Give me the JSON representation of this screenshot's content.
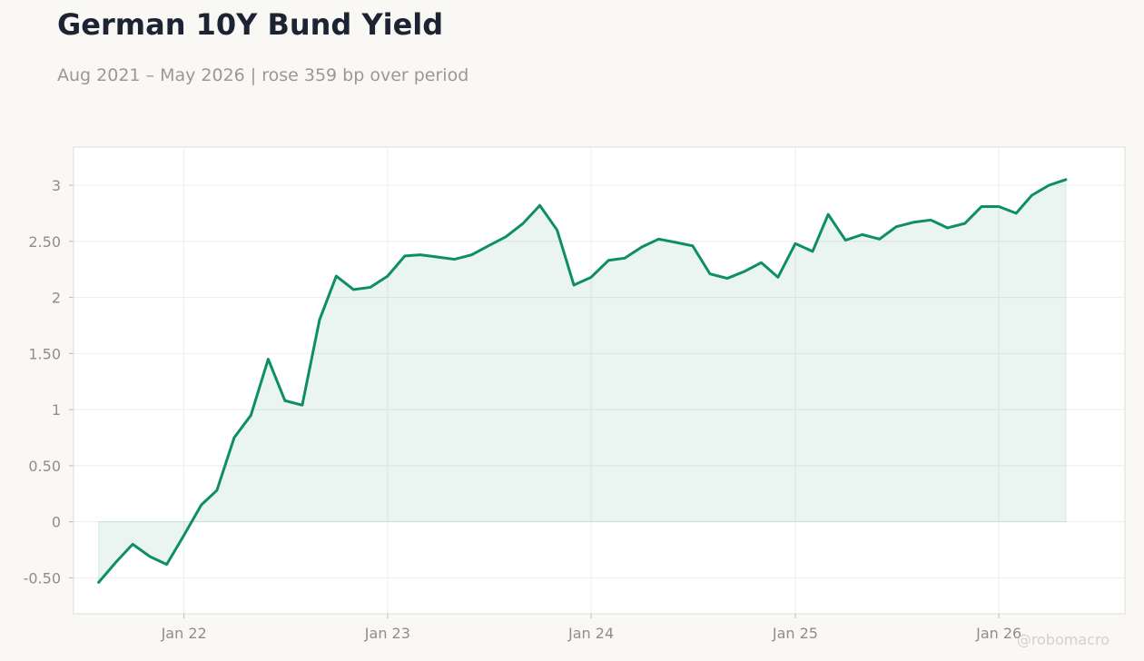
{
  "title": "German 10Y Bund Yield",
  "subtitle": "Aug 2021 – May 2026 | rose 359 bp over period",
  "watermark": "@robomacro",
  "colors": {
    "line": "#0e8f5f",
    "fill": "#0e8f5f",
    "background": "#f9f8f5",
    "plot_background": "#ffffff"
  },
  "chart_data": {
    "type": "area",
    "title": "German 10Y Bund Yield",
    "subtitle": "Aug 2021 – May 2026 | rose 359 bp over period",
    "xlabel": "",
    "ylabel": "",
    "ylim": [
      -0.82,
      3.34
    ],
    "xlim": [
      "2021-06-17",
      "2026-08-15"
    ],
    "grid": true,
    "legend": "none",
    "yticks": [
      -0.5,
      0,
      0.5,
      1,
      1.5,
      2,
      2.5,
      3
    ],
    "ytick_labels": [
      "-0.50",
      "0",
      "0.50",
      "1",
      "1.50",
      "2",
      "2.50",
      "3"
    ],
    "xticks": [
      "2022-01-01",
      "2023-01-01",
      "2024-01-01",
      "2025-01-01",
      "2026-01-01"
    ],
    "xtick_labels": [
      "Jan 22",
      "Jan 23",
      "Jan 24",
      "Jan 25",
      "Jan 26"
    ],
    "series": [
      {
        "x": [
          "2021-08-01",
          "2021-09-01",
          "2021-10-01",
          "2021-11-01",
          "2021-12-01",
          "2022-01-01",
          "2022-02-01",
          "2022-03-01",
          "2022-04-01",
          "2022-05-01",
          "2022-06-01",
          "2022-07-01",
          "2022-08-01",
          "2022-09-01",
          "2022-10-01",
          "2022-11-01",
          "2022-12-01",
          "2023-01-01",
          "2023-02-01",
          "2023-03-01",
          "2023-04-01",
          "2023-05-01",
          "2023-06-01",
          "2023-07-01",
          "2023-08-01",
          "2023-09-01",
          "2023-10-01",
          "2023-11-01",
          "2023-12-01",
          "2024-01-01",
          "2024-02-01",
          "2024-03-01",
          "2024-04-01",
          "2024-05-01",
          "2024-06-01",
          "2024-07-01",
          "2024-08-01",
          "2024-09-01",
          "2024-10-01",
          "2024-11-01",
          "2024-12-01",
          "2025-01-01",
          "2025-02-01",
          "2025-03-01",
          "2025-04-01",
          "2025-05-01",
          "2025-06-01",
          "2025-07-01",
          "2025-08-01",
          "2025-09-01",
          "2025-10-01",
          "2025-11-01",
          "2025-12-01",
          "2026-01-01",
          "2026-02-01",
          "2026-03-01",
          "2026-04-01",
          "2026-05-01"
        ],
        "values": [
          -0.54,
          -0.36,
          -0.2,
          -0.31,
          -0.38,
          -0.12,
          0.15,
          0.28,
          0.75,
          0.95,
          1.45,
          1.08,
          1.04,
          1.8,
          2.19,
          2.07,
          2.09,
          2.19,
          2.37,
          2.38,
          2.36,
          2.34,
          2.38,
          2.46,
          2.54,
          2.66,
          2.82,
          2.6,
          2.11,
          2.18,
          2.33,
          2.35,
          2.45,
          2.52,
          2.49,
          2.46,
          2.21,
          2.17,
          2.23,
          2.31,
          2.18,
          2.48,
          2.41,
          2.74,
          2.51,
          2.56,
          2.52,
          2.63,
          2.67,
          2.69,
          2.62,
          2.66,
          2.81,
          2.81,
          2.75,
          2.91,
          3.0,
          3.05
        ]
      }
    ]
  }
}
